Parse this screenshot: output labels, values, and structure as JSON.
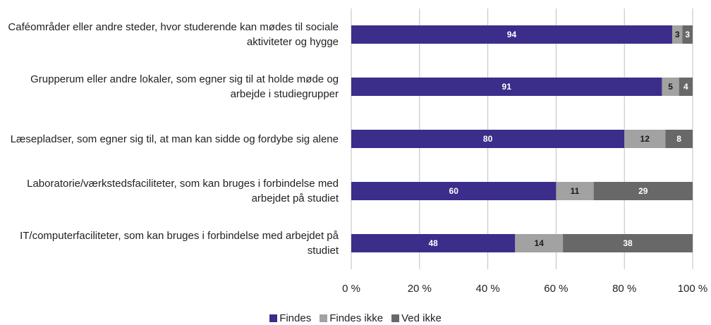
{
  "chart_data": {
    "type": "stacked_barh",
    "categories": [
      "Caféområder eller andre steder, hvor studerende kan mødes til sociale aktiviteter og hygge",
      "Grupperum eller andre lokaler, som egner sig til at holde møde og arbejde i studiegrupper",
      "Læsepladser, som egner sig til, at man kan sidde og fordybe sig alene",
      "Laboratorie/værkstedsfaciliteter, som kan bruges i forbindelse med arbejdet på studiet",
      "IT/computerfaciliteter, som kan bruges i forbindelse med arbejdet på studiet"
    ],
    "series": [
      {
        "name": "Findes",
        "color": "#3b2d8a",
        "label_color": "#ffffff",
        "values": [
          94,
          91,
          80,
          60,
          48
        ]
      },
      {
        "name": "Findes ikke",
        "color": "#a2a2a2",
        "label_color": "#1a1a1a",
        "values": [
          3,
          5,
          12,
          11,
          14
        ]
      },
      {
        "name": "Ved ikke",
        "color": "#686868",
        "label_color": "#ffffff",
        "values": [
          3,
          4,
          8,
          29,
          38
        ]
      }
    ],
    "xlim": [
      0,
      100
    ],
    "xticks": [
      {
        "value": 0,
        "label": "0 %"
      },
      {
        "value": 20,
        "label": "20 %"
      },
      {
        "value": 40,
        "label": "40 %"
      },
      {
        "value": 60,
        "label": "60 %"
      },
      {
        "value": 80,
        "label": "80 %"
      },
      {
        "value": 100,
        "label": "100 %"
      }
    ],
    "grid": true,
    "legend": "bottom"
  }
}
